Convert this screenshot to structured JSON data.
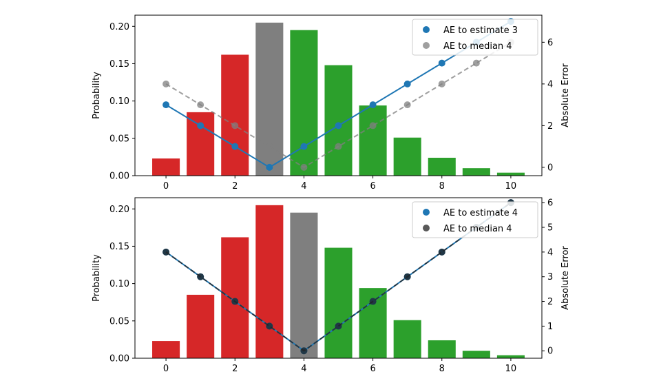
{
  "chart_data": [
    {
      "type": "bar+line",
      "panel": "top",
      "categories": [
        0,
        1,
        2,
        3,
        4,
        5,
        6,
        7,
        8,
        9,
        10
      ],
      "probabilities": [
        0.023,
        0.085,
        0.162,
        0.205,
        0.195,
        0.148,
        0.094,
        0.051,
        0.024,
        0.01,
        0.004
      ],
      "bar_colors": [
        "#d62728",
        "#d62728",
        "#d62728",
        "#d62728",
        "#2ca02c",
        "#2ca02c",
        "#2ca02c",
        "#2ca02c",
        "#2ca02c",
        "#2ca02c",
        "#2ca02c"
      ],
      "bar_color_overrides": {
        "3": "#7f7f7f"
      },
      "ylabel_left": "Probability",
      "ylabel_right": "Absolute Error",
      "ylim_left": [
        0,
        0.215
      ],
      "yticks_left": [
        "0.00",
        "0.05",
        "0.10",
        "0.15",
        "0.20"
      ],
      "ylim_right": [
        -0.4,
        7.3
      ],
      "yticks_right": [
        "0",
        "2",
        "4",
        "6"
      ],
      "xticks": [
        "0",
        "2",
        "4",
        "6",
        "8",
        "10"
      ],
      "series": [
        {
          "name": "AE to estimate 3",
          "style": "solid",
          "color": "#1f77b4",
          "values": [
            3,
            2,
            1,
            0,
            1,
            2,
            3,
            4,
            5,
            6,
            7
          ]
        },
        {
          "name": "AE to median 4",
          "style": "dashed",
          "color": "#7f7f7f",
          "values": [
            4,
            3,
            2,
            1,
            0,
            1,
            2,
            3,
            4,
            5,
            6
          ]
        }
      ],
      "legend": {
        "position": "upper-right",
        "entries": [
          "AE to estimate 3",
          "AE to median 4"
        ]
      }
    },
    {
      "type": "bar+line",
      "panel": "bottom",
      "categories": [
        0,
        1,
        2,
        3,
        4,
        5,
        6,
        7,
        8,
        9,
        10
      ],
      "probabilities": [
        0.023,
        0.085,
        0.162,
        0.205,
        0.195,
        0.148,
        0.094,
        0.051,
        0.024,
        0.01,
        0.004
      ],
      "bar_colors": [
        "#d62728",
        "#d62728",
        "#d62728",
        "#d62728",
        "#2ca02c",
        "#2ca02c",
        "#2ca02c",
        "#2ca02c",
        "#2ca02c",
        "#2ca02c",
        "#2ca02c"
      ],
      "bar_color_overrides": {
        "4": "#7f7f7f"
      },
      "ylabel_left": "Probability",
      "ylabel_right": "Absolute Error",
      "ylim_left": [
        0,
        0.215
      ],
      "yticks_left": [
        "0.00",
        "0.05",
        "0.10",
        "0.15",
        "0.20"
      ],
      "ylim_right": [
        -0.3,
        6.2
      ],
      "yticks_right": [
        "0",
        "1",
        "2",
        "3",
        "4",
        "5",
        "6"
      ],
      "xticks": [
        "0",
        "2",
        "4",
        "6",
        "8",
        "10"
      ],
      "series": [
        {
          "name": "AE to estimate 4",
          "style": "solid",
          "color": "#1f77b4",
          "values": [
            4,
            3,
            2,
            1,
            0,
            1,
            2,
            3,
            4,
            5,
            6
          ]
        },
        {
          "name": "AE to median 4",
          "style": "dashed",
          "color": "#222222",
          "values": [
            4,
            3,
            2,
            1,
            0,
            1,
            2,
            3,
            4,
            5,
            6
          ]
        }
      ],
      "legend": {
        "position": "upper-right",
        "entries": [
          "AE to estimate 4",
          "AE to median 4"
        ]
      }
    }
  ]
}
